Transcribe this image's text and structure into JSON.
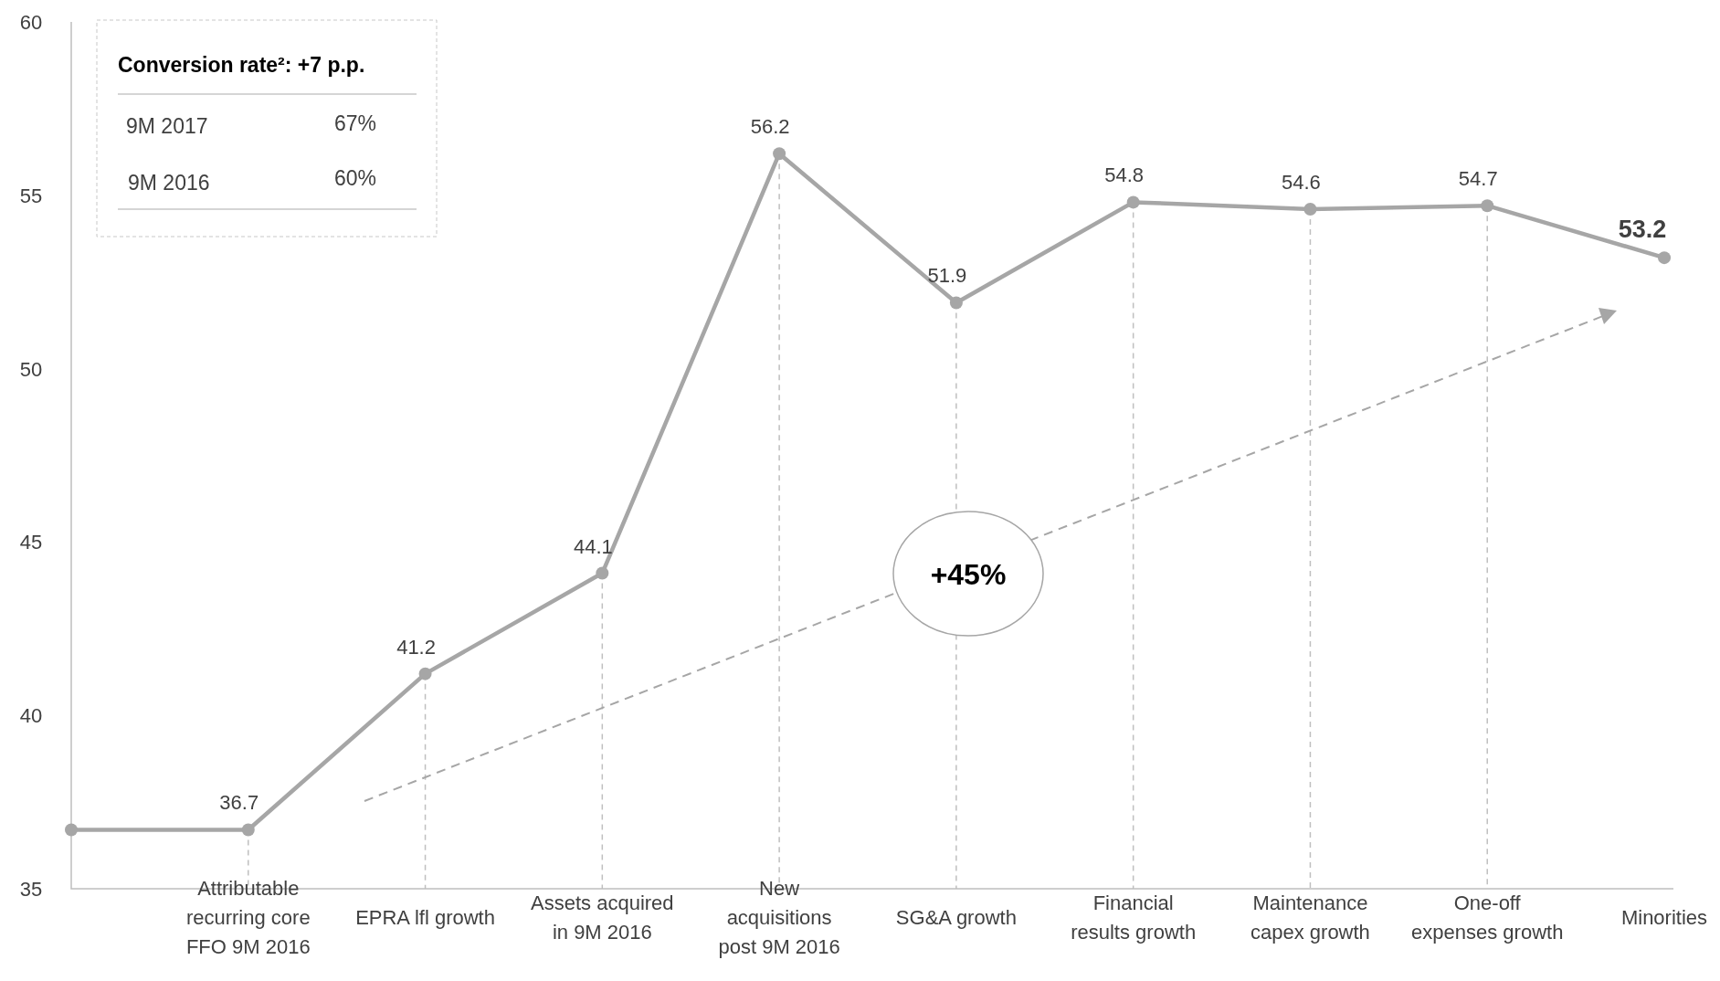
{
  "chart_data": {
    "type": "line",
    "categories": [
      null,
      "Attributable recurring core FFO 9M 2016",
      "EPRA lfl growth",
      "Assets acquired in 9M 2016",
      "New acquisitions post 9M 2016",
      "SG&A growth",
      "Financial results growth",
      "Maintenance capex growth",
      "One-off expenses growth",
      "Minorities"
    ],
    "series": [
      {
        "color": "#a6a6a6",
        "values": [
          36.7,
          36.7,
          41.2,
          44.1,
          56.2,
          51.9,
          54.8,
          54.6,
          54.7,
          53.2
        ],
        "value_labels": [
          null,
          "36.7",
          "41.2",
          "44.1",
          "56.2",
          "51.9",
          "54.8",
          "54.6",
          "54.7",
          "53.2"
        ]
      }
    ],
    "ylim": [
      35,
      60
    ],
    "yticks": [
      35,
      40,
      45,
      50,
      55,
      60
    ],
    "grid": "x",
    "marker": "circle",
    "line_style": "solid",
    "annotations": [
      "Conversion rate²: +7 p.p.",
      "9M 2017",
      "67%",
      "9M 2016",
      "60%",
      "+45%"
    ]
  }
}
